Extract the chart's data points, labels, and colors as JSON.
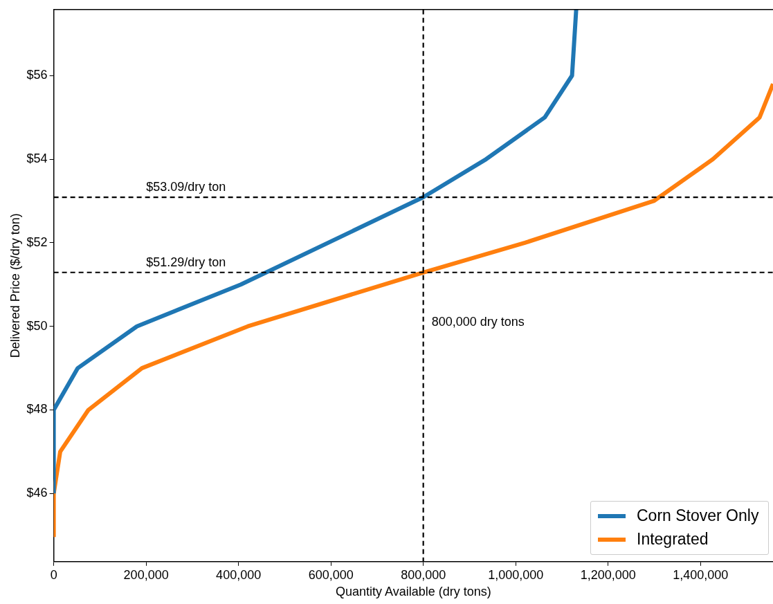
{
  "chart_data": {
    "type": "line",
    "xlabel": "Quantity Available (dry tons)",
    "ylabel": "Delivered Price ($/dry ton)",
    "series": [
      {
        "name": "Corn Stover Only",
        "color": "#1f77b4",
        "x": [
          0,
          0,
          52000,
          180000,
          405000,
          800000,
          936000,
          1063000,
          1122000,
          1131000
        ],
        "values": [
          46,
          48,
          49,
          50,
          51,
          53.09,
          54,
          55,
          56,
          57.58
        ]
      },
      {
        "name": "Integrated",
        "color": "#ff7f0e",
        "x": [
          0,
          0,
          14000,
          75000,
          191000,
          420000,
          800000,
          1020000,
          1299000,
          1427000,
          1528000,
          1557000
        ],
        "values": [
          44.96,
          46,
          47,
          48,
          49,
          50,
          51.29,
          52,
          53,
          54,
          55,
          55.8
        ]
      }
    ],
    "xlim": [
      0,
      1557000
    ],
    "ylim": [
      44.37,
      57.58
    ],
    "xticks": [
      {
        "value": 0,
        "label": "0"
      },
      {
        "value": 200000,
        "label": "200,000"
      },
      {
        "value": 400000,
        "label": "400,000"
      },
      {
        "value": 600000,
        "label": "600,000"
      },
      {
        "value": 800000,
        "label": "800,000"
      },
      {
        "value": 1000000,
        "label": "1,000,000"
      },
      {
        "value": 1200000,
        "label": "1,200,000"
      },
      {
        "value": 1400000,
        "label": "1,400,000"
      }
    ],
    "yticks": [
      {
        "value": 46,
        "label": "$46"
      },
      {
        "value": 48,
        "label": "$48"
      },
      {
        "value": 50,
        "label": "$50"
      },
      {
        "value": 52,
        "label": "$52"
      },
      {
        "value": 54,
        "label": "$54"
      },
      {
        "value": 56,
        "label": "$56"
      }
    ],
    "ref_lines": [
      {
        "axis": "y",
        "value": 53.09,
        "label": "$53.09/dry ton",
        "color": "#000000",
        "line_style": "dashed"
      },
      {
        "axis": "y",
        "value": 51.29,
        "label": "$51.29/dry ton",
        "color": "#000000",
        "line_style": "dashed"
      },
      {
        "axis": "x",
        "value": 800000,
        "label": "800,000 dry tons",
        "color": "#000000",
        "line_style": "dashed"
      }
    ],
    "legend": "bottom right",
    "grid": false,
    "marker": "none",
    "line_style": "solid"
  }
}
